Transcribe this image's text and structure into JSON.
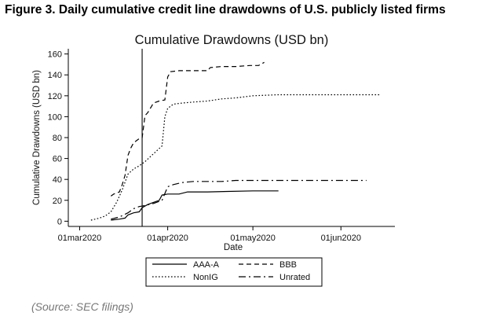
{
  "figure_caption": "Figure 3. Daily cumulative credit line drawdowns of U.S. publicly listed firms",
  "source_note": "(Source: SEC filings)",
  "chart_data": {
    "type": "line",
    "title": "Cumulative Drawdowns (USD bn)",
    "xlabel": "Date",
    "ylabel": "Cumulative Drawdowns (USD bn)",
    "x_type": "date",
    "xlim": [
      "2020-02-26",
      "2020-06-20"
    ],
    "ylim": [
      -5,
      165
    ],
    "x_ticks": [
      {
        "date": "2020-03-01",
        "label": "01mar2020"
      },
      {
        "date": "2020-04-01",
        "label": "01apr2020"
      },
      {
        "date": "2020-05-01",
        "label": "01may2020"
      },
      {
        "date": "2020-06-01",
        "label": "01jun2020"
      }
    ],
    "y_ticks": [
      0,
      20,
      40,
      60,
      80,
      100,
      120,
      140,
      160
    ],
    "grid": false,
    "vertical_reference_line": "2020-03-23",
    "legend_position": "bottom",
    "series": [
      {
        "name": "AAA-A",
        "color": "#000000",
        "dash": "solid",
        "points": [
          [
            "2020-03-12",
            1
          ],
          [
            "2020-03-15",
            2
          ],
          [
            "2020-03-17",
            3
          ],
          [
            "2020-03-18",
            6
          ],
          [
            "2020-03-20",
            8
          ],
          [
            "2020-03-22",
            9
          ],
          [
            "2020-03-23",
            13
          ],
          [
            "2020-03-25",
            16
          ],
          [
            "2020-03-27",
            18
          ],
          [
            "2020-03-29",
            20
          ],
          [
            "2020-03-30",
            25
          ],
          [
            "2020-04-01",
            26
          ],
          [
            "2020-04-05",
            26
          ],
          [
            "2020-04-08",
            28
          ],
          [
            "2020-04-15",
            28
          ],
          [
            "2020-04-22",
            28.5
          ],
          [
            "2020-05-01",
            29
          ],
          [
            "2020-05-10",
            29
          ]
        ]
      },
      {
        "name": "BBB",
        "color": "#000000",
        "dash": "dash",
        "points": [
          [
            "2020-03-12",
            24
          ],
          [
            "2020-03-13",
            26
          ],
          [
            "2020-03-15",
            28
          ],
          [
            "2020-03-16",
            35
          ],
          [
            "2020-03-17",
            44
          ],
          [
            "2020-03-18",
            63
          ],
          [
            "2020-03-19",
            70
          ],
          [
            "2020-03-20",
            75
          ],
          [
            "2020-03-22",
            79
          ],
          [
            "2020-03-23",
            80
          ],
          [
            "2020-03-24",
            101
          ],
          [
            "2020-03-25",
            104
          ],
          [
            "2020-03-27",
            113
          ],
          [
            "2020-03-29",
            115
          ],
          [
            "2020-03-31",
            116
          ],
          [
            "2020-04-01",
            138
          ],
          [
            "2020-04-02",
            143
          ],
          [
            "2020-04-05",
            144
          ],
          [
            "2020-04-10",
            144
          ],
          [
            "2020-04-15",
            144
          ],
          [
            "2020-04-16",
            147
          ],
          [
            "2020-04-20",
            148
          ],
          [
            "2020-04-25",
            148
          ],
          [
            "2020-04-30",
            149
          ],
          [
            "2020-05-03",
            149
          ],
          [
            "2020-05-05",
            152
          ]
        ]
      },
      {
        "name": "NonIG",
        "color": "#000000",
        "dash": "dot",
        "points": [
          [
            "2020-03-05",
            1
          ],
          [
            "2020-03-08",
            3
          ],
          [
            "2020-03-10",
            5
          ],
          [
            "2020-03-12",
            9
          ],
          [
            "2020-03-14",
            18
          ],
          [
            "2020-03-16",
            30
          ],
          [
            "2020-03-18",
            45
          ],
          [
            "2020-03-20",
            50
          ],
          [
            "2020-03-22",
            53
          ],
          [
            "2020-03-24",
            57
          ],
          [
            "2020-03-26",
            62
          ],
          [
            "2020-03-28",
            67
          ],
          [
            "2020-03-30",
            72
          ],
          [
            "2020-03-31",
            100
          ],
          [
            "2020-04-01",
            108
          ],
          [
            "2020-04-03",
            112
          ],
          [
            "2020-04-06",
            113
          ],
          [
            "2020-04-10",
            114
          ],
          [
            "2020-04-15",
            115
          ],
          [
            "2020-04-20",
            117
          ],
          [
            "2020-04-25",
            118
          ],
          [
            "2020-05-01",
            120
          ],
          [
            "2020-05-10",
            121
          ],
          [
            "2020-05-20",
            121
          ],
          [
            "2020-06-01",
            121
          ],
          [
            "2020-06-15",
            121
          ]
        ]
      },
      {
        "name": "Unrated",
        "color": "#000000",
        "dash": "dashdot",
        "points": [
          [
            "2020-03-12",
            2
          ],
          [
            "2020-03-15",
            4
          ],
          [
            "2020-03-18",
            8
          ],
          [
            "2020-03-20",
            12
          ],
          [
            "2020-03-22",
            14
          ],
          [
            "2020-03-24",
            15
          ],
          [
            "2020-03-27",
            17
          ],
          [
            "2020-03-30",
            20
          ],
          [
            "2020-04-01",
            33
          ],
          [
            "2020-04-03",
            35
          ],
          [
            "2020-04-06",
            37
          ],
          [
            "2020-04-10",
            38
          ],
          [
            "2020-04-20",
            38
          ],
          [
            "2020-04-25",
            39
          ],
          [
            "2020-05-01",
            39
          ],
          [
            "2020-05-20",
            39
          ],
          [
            "2020-06-01",
            39
          ],
          [
            "2020-06-10",
            39
          ]
        ]
      }
    ]
  }
}
